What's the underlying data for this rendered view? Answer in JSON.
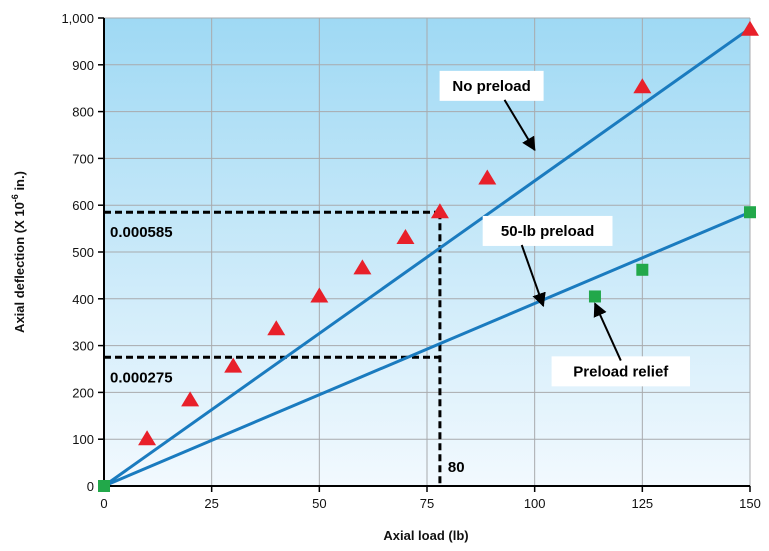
{
  "chart_data": {
    "type": "line",
    "xlabel": "Axial load (lb)",
    "ylabel": "Axial deflection (X 10",
    "ylabel_exp": "-6",
    "ylabel_tail": " in.)",
    "xlim": [
      0,
      150
    ],
    "ylim": [
      0,
      1000
    ],
    "x_ticks": [
      0,
      25,
      50,
      75,
      100,
      125,
      150
    ],
    "y_ticks": [
      0,
      100,
      200,
      300,
      400,
      500,
      600,
      700,
      800,
      900,
      1000
    ],
    "x_tick_labels": [
      "0",
      "25",
      "50",
      "75",
      "100",
      "125",
      "150"
    ],
    "y_tick_labels": [
      "0",
      "100",
      "200",
      "300",
      "400",
      "500",
      "600",
      "700",
      "800",
      "900",
      "1,000"
    ],
    "grid": true,
    "series": [
      {
        "name": "No preload",
        "color": "#e8202a",
        "line_color": "#1a7bbf",
        "marker": "triangle",
        "line": [
          [
            0,
            0
          ],
          [
            150,
            978
          ]
        ],
        "points": [
          [
            10,
            100
          ],
          [
            20,
            183
          ],
          [
            30,
            255
          ],
          [
            40,
            335
          ],
          [
            50,
            405
          ],
          [
            60,
            465
          ],
          [
            70,
            530
          ],
          [
            78,
            585
          ],
          [
            89,
            657
          ],
          [
            125,
            852
          ],
          [
            150,
            975
          ]
        ]
      },
      {
        "name": "50-lb preload",
        "color": "#22a84a",
        "line_color": "#1a7bbf",
        "marker": "square",
        "line": [
          [
            0,
            0
          ],
          [
            150,
            585
          ]
        ],
        "points": [
          [
            0,
            0
          ],
          [
            114,
            405
          ],
          [
            125,
            462
          ],
          [
            150,
            585
          ]
        ]
      }
    ],
    "annotations": [
      {
        "text": "No preload",
        "label_at": [
          90,
          855
        ],
        "arrow_from": [
          93,
          825
        ],
        "arrow_to": [
          100,
          718
        ]
      },
      {
        "text": "50-lb preload",
        "label_at": [
          103,
          545
        ],
        "arrow_from": [
          97,
          515
        ],
        "arrow_to": [
          102,
          385
        ]
      },
      {
        "text": "Preload relief",
        "label_at": [
          120,
          245
        ],
        "arrow_from": [
          120,
          268
        ],
        "arrow_to": [
          114,
          390
        ]
      }
    ],
    "reference_lines": [
      {
        "label": "0.000585",
        "y": 585,
        "x_end": 78
      },
      {
        "label": "0.000275",
        "y": 275,
        "x_end": 78
      }
    ],
    "vertical_marker": {
      "label": "80",
      "x": 78
    }
  },
  "colors": {
    "bg_top": "#9fd9f4",
    "bg_bottom": "#f2f9fe",
    "grid": "#a8aaad",
    "line": "#1a7bbf"
  }
}
